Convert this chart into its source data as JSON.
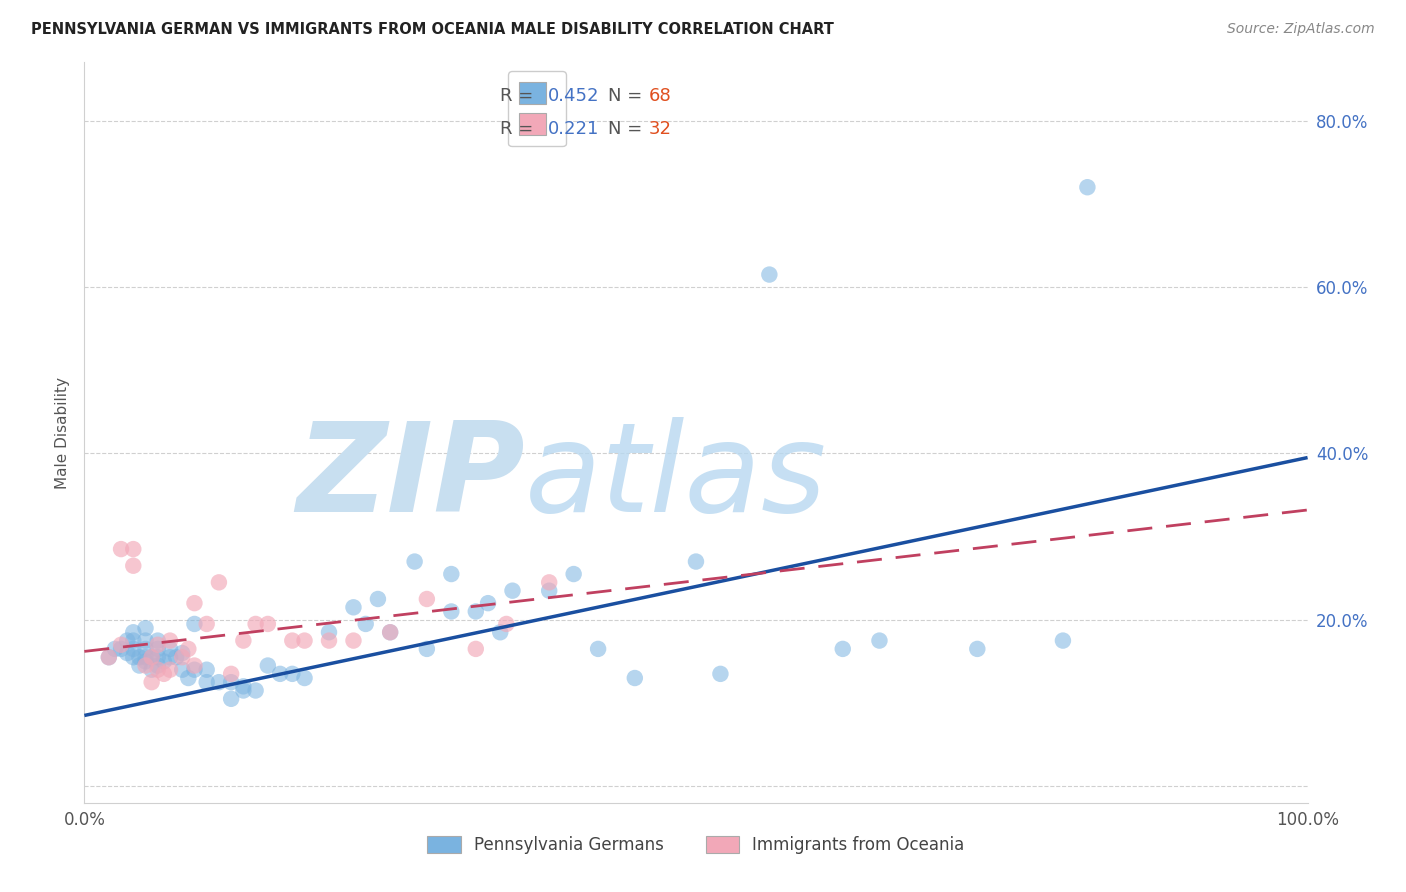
{
  "title": "PENNSYLVANIA GERMAN VS IMMIGRANTS FROM OCEANIA MALE DISABILITY CORRELATION CHART",
  "source": "Source: ZipAtlas.com",
  "ylabel": "Male Disability",
  "xlim": [
    0.0,
    1.0
  ],
  "ylim": [
    -0.02,
    0.87
  ],
  "ytick_vals": [
    0.0,
    0.2,
    0.4,
    0.6,
    0.8
  ],
  "ytick_labels": [
    "",
    "20.0%",
    "40.0%",
    "60.0%",
    "80.0%"
  ],
  "xtick_vals": [
    0.0,
    0.2,
    0.4,
    0.6,
    0.8,
    1.0
  ],
  "xtick_labels": [
    "0.0%",
    "",
    "",
    "",
    "",
    "100.0%"
  ],
  "legend1_text_prefix": "R = ",
  "legend1_r": "0.452",
  "legend1_n_label": "  N = ",
  "legend1_n": "68",
  "legend2_r": "0.221",
  "legend2_n": "32",
  "legend_bottom1": "Pennsylvania Germans",
  "legend_bottom2": "Immigrants from Oceania",
  "blue_color": "#7ab3e0",
  "pink_color": "#f2a8b8",
  "blue_line_color": "#1a4fa0",
  "pink_line_color": "#c04060",
  "watermark_text": "ZIPatlas",
  "watermark_color": "#d5e8f5",
  "blue_trend_y_start": 0.085,
  "blue_trend_y_end": 0.395,
  "pink_trend_y_start": 0.162,
  "pink_trend_y_end": 0.332,
  "blue_scatter_x": [
    0.02,
    0.025,
    0.03,
    0.035,
    0.035,
    0.04,
    0.04,
    0.04,
    0.04,
    0.045,
    0.045,
    0.05,
    0.05,
    0.05,
    0.05,
    0.05,
    0.055,
    0.055,
    0.06,
    0.06,
    0.06,
    0.06,
    0.065,
    0.07,
    0.07,
    0.075,
    0.08,
    0.08,
    0.085,
    0.09,
    0.09,
    0.1,
    0.1,
    0.11,
    0.12,
    0.12,
    0.13,
    0.13,
    0.14,
    0.15,
    0.16,
    0.17,
    0.18,
    0.2,
    0.22,
    0.23,
    0.24,
    0.25,
    0.27,
    0.28,
    0.3,
    0.3,
    0.32,
    0.33,
    0.34,
    0.35,
    0.38,
    0.4,
    0.42,
    0.45,
    0.5,
    0.52,
    0.56,
    0.62,
    0.65,
    0.73,
    0.8,
    0.82
  ],
  "blue_scatter_y": [
    0.155,
    0.165,
    0.165,
    0.175,
    0.16,
    0.155,
    0.165,
    0.175,
    0.185,
    0.145,
    0.155,
    0.15,
    0.155,
    0.165,
    0.175,
    0.19,
    0.14,
    0.155,
    0.145,
    0.155,
    0.165,
    0.175,
    0.15,
    0.155,
    0.165,
    0.155,
    0.14,
    0.16,
    0.13,
    0.14,
    0.195,
    0.125,
    0.14,
    0.125,
    0.105,
    0.125,
    0.115,
    0.12,
    0.115,
    0.145,
    0.135,
    0.135,
    0.13,
    0.185,
    0.215,
    0.195,
    0.225,
    0.185,
    0.27,
    0.165,
    0.255,
    0.21,
    0.21,
    0.22,
    0.185,
    0.235,
    0.235,
    0.255,
    0.165,
    0.13,
    0.27,
    0.135,
    0.615,
    0.165,
    0.175,
    0.165,
    0.175,
    0.72
  ],
  "pink_scatter_x": [
    0.02,
    0.03,
    0.03,
    0.04,
    0.04,
    0.05,
    0.055,
    0.055,
    0.06,
    0.06,
    0.065,
    0.07,
    0.07,
    0.08,
    0.085,
    0.09,
    0.1,
    0.11,
    0.12,
    0.13,
    0.14,
    0.15,
    0.17,
    0.18,
    0.2,
    0.22,
    0.25,
    0.28,
    0.32,
    0.38,
    0.09,
    0.345
  ],
  "pink_scatter_y": [
    0.155,
    0.17,
    0.285,
    0.265,
    0.285,
    0.145,
    0.125,
    0.155,
    0.14,
    0.17,
    0.135,
    0.14,
    0.175,
    0.155,
    0.165,
    0.145,
    0.195,
    0.245,
    0.135,
    0.175,
    0.195,
    0.195,
    0.175,
    0.175,
    0.175,
    0.175,
    0.185,
    0.225,
    0.165,
    0.245,
    0.22,
    0.195
  ]
}
